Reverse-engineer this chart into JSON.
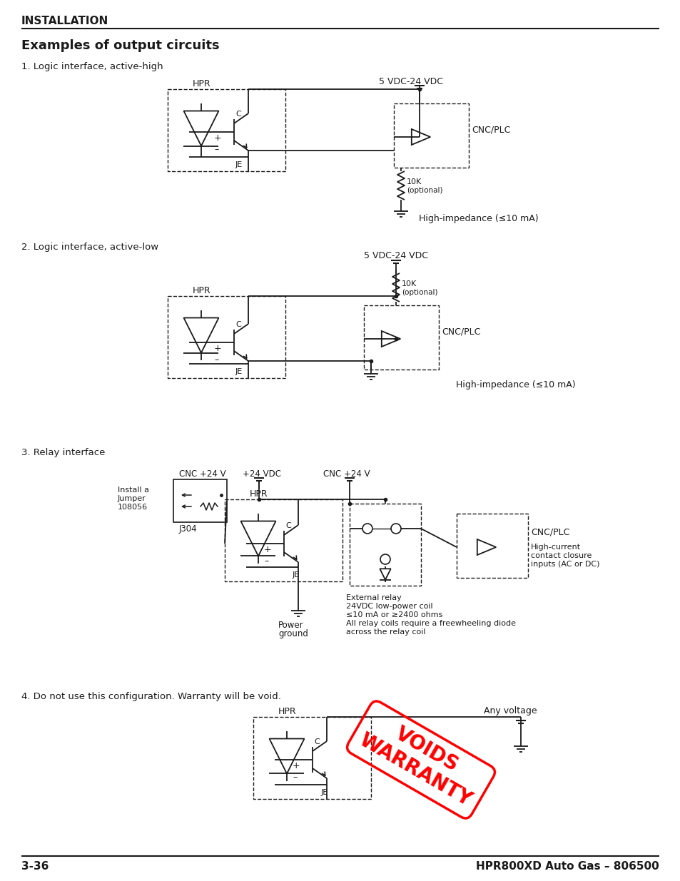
{
  "title_main": "Examples of output circuits",
  "header": "INSTALLATION",
  "footer_left": "3-36",
  "footer_right": "HPR800XD Auto Gas – 806500",
  "section1_label": "1. Logic interface, active-high",
  "section2_label": "2. Logic interface, active-low",
  "section3_label": "3. Relay interface",
  "section4_label": "4. Do not use this configuration. Warranty will be void.",
  "bg_color": "#ffffff",
  "line_color": "#1a1a1a",
  "text_color": "#1a1a1a"
}
